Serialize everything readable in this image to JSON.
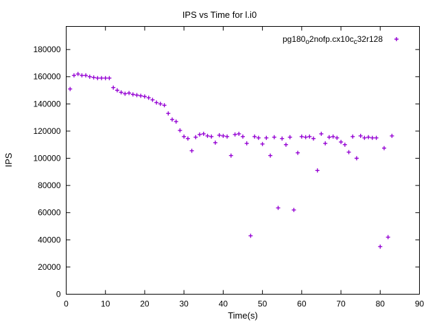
{
  "chart_data": {
    "type": "scatter",
    "title": "IPS vs Time for l.i0",
    "xlabel": "Time(s)",
    "ylabel": "IPS",
    "xlim": [
      0,
      90
    ],
    "ylim": [
      0,
      197000
    ],
    "xticks": [
      0,
      10,
      20,
      30,
      40,
      50,
      60,
      70,
      80,
      90
    ],
    "yticks": [
      0,
      20000,
      40000,
      60000,
      80000,
      100000,
      120000,
      140000,
      160000,
      180000
    ],
    "grid": false,
    "marker": "plus",
    "color": "#9400d3",
    "legend": {
      "position": "top-right",
      "label_plain": "pg180_o2nofp.cx10c_c32r128",
      "segments": [
        {
          "text": "pg180",
          "sub": false
        },
        {
          "text": "o",
          "sub": true
        },
        {
          "text": "2nofp.cx10c",
          "sub": false
        },
        {
          "text": "c",
          "sub": true
        },
        {
          "text": "32r128",
          "sub": false
        }
      ]
    },
    "series": [
      {
        "name": "pg180_o2nofp.cx10c_c32r128",
        "points": [
          [
            1,
            151000
          ],
          [
            2,
            161000
          ],
          [
            3,
            162000
          ],
          [
            4,
            161000
          ],
          [
            5,
            161000
          ],
          [
            6,
            160000
          ],
          [
            7,
            159500
          ],
          [
            8,
            159000
          ],
          [
            9,
            159000
          ],
          [
            10,
            159000
          ],
          [
            11,
            159000
          ],
          [
            12,
            152000
          ],
          [
            13,
            150000
          ],
          [
            14,
            148500
          ],
          [
            15,
            147500
          ],
          [
            16,
            148000
          ],
          [
            17,
            147000
          ],
          [
            18,
            146500
          ],
          [
            19,
            146000
          ],
          [
            20,
            145500
          ],
          [
            21,
            144500
          ],
          [
            22,
            143000
          ],
          [
            23,
            141000
          ],
          [
            24,
            140000
          ],
          [
            25,
            139000
          ],
          [
            26,
            133000
          ],
          [
            27,
            128500
          ],
          [
            28,
            127000
          ],
          [
            29,
            120500
          ],
          [
            30,
            116000
          ],
          [
            31,
            114500
          ],
          [
            32,
            105500
          ],
          [
            33,
            115500
          ],
          [
            34,
            117500
          ],
          [
            35,
            118000
          ],
          [
            36,
            116500
          ],
          [
            37,
            116000
          ],
          [
            38,
            111500
          ],
          [
            39,
            117000
          ],
          [
            40,
            116500
          ],
          [
            41,
            116000
          ],
          [
            42,
            102000
          ],
          [
            43,
            117500
          ],
          [
            44,
            118000
          ],
          [
            45,
            116000
          ],
          [
            46,
            111000
          ],
          [
            47,
            43000
          ],
          [
            48,
            116000
          ],
          [
            49,
            115000
          ],
          [
            50,
            110500
          ],
          [
            51,
            115000
          ],
          [
            52,
            102000
          ],
          [
            53,
            115500
          ],
          [
            54,
            63500
          ],
          [
            55,
            114500
          ],
          [
            56,
            110000
          ],
          [
            57,
            115500
          ],
          [
            58,
            62000
          ],
          [
            59,
            104000
          ],
          [
            60,
            116000
          ],
          [
            61,
            115500
          ],
          [
            62,
            116000
          ],
          [
            63,
            114500
          ],
          [
            64,
            91000
          ],
          [
            65,
            118000
          ],
          [
            66,
            111000
          ],
          [
            67,
            115500
          ],
          [
            68,
            116000
          ],
          [
            69,
            115000
          ],
          [
            70,
            112000
          ],
          [
            71,
            110000
          ],
          [
            72,
            104500
          ],
          [
            73,
            116000
          ],
          [
            74,
            100000
          ],
          [
            75,
            116500
          ],
          [
            76,
            115000
          ],
          [
            77,
            115500
          ],
          [
            78,
            115000
          ],
          [
            79,
            115000
          ],
          [
            80,
            35000
          ],
          [
            81,
            107500
          ],
          [
            82,
            42000
          ],
          [
            83,
            116500
          ]
        ]
      }
    ]
  }
}
